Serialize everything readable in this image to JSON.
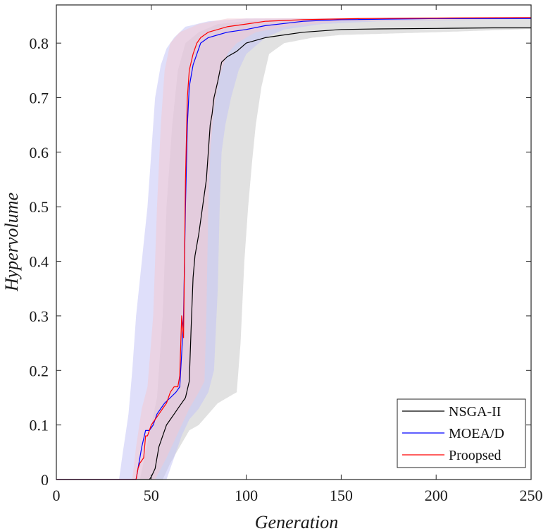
{
  "chart_data": {
    "type": "line",
    "title": "",
    "xlabel": "Generation",
    "ylabel": "Hypervolume",
    "xlim": [
      0,
      250
    ],
    "ylim": [
      0,
      0.87
    ],
    "xticks": [
      0,
      50,
      100,
      150,
      200,
      250
    ],
    "yticks": [
      0,
      0.1,
      0.2,
      0.3,
      0.4,
      0.5,
      0.6,
      0.7,
      0.8
    ],
    "grid": false,
    "legend_position": "bottom-right",
    "series": [
      {
        "name": "NSGA-II",
        "color": "#000000",
        "band_color": "#c8c8c8",
        "mean": [
          [
            0,
            0
          ],
          [
            49,
            0
          ],
          [
            50,
            0.005
          ],
          [
            52,
            0.02
          ],
          [
            54,
            0.06
          ],
          [
            56,
            0.08
          ],
          [
            58,
            0.1
          ],
          [
            60,
            0.11
          ],
          [
            62,
            0.12
          ],
          [
            64,
            0.13
          ],
          [
            66,
            0.14
          ],
          [
            68,
            0.15
          ],
          [
            70,
            0.18
          ],
          [
            71,
            0.28
          ],
          [
            72,
            0.37
          ],
          [
            73,
            0.41
          ],
          [
            75,
            0.45
          ],
          [
            77,
            0.5
          ],
          [
            79,
            0.55
          ],
          [
            80,
            0.6
          ],
          [
            81,
            0.65
          ],
          [
            82,
            0.67
          ],
          [
            83,
            0.7
          ],
          [
            85,
            0.73
          ],
          [
            87,
            0.765
          ],
          [
            90,
            0.775
          ],
          [
            95,
            0.785
          ],
          [
            100,
            0.8
          ],
          [
            110,
            0.81
          ],
          [
            120,
            0.815
          ],
          [
            130,
            0.82
          ],
          [
            150,
            0.825
          ],
          [
            170,
            0.826
          ],
          [
            200,
            0.827
          ],
          [
            230,
            0.828
          ],
          [
            250,
            0.828
          ]
        ],
        "lower": [
          [
            0,
            0
          ],
          [
            56,
            0
          ],
          [
            60,
            0.03
          ],
          [
            65,
            0.06
          ],
          [
            70,
            0.09
          ],
          [
            75,
            0.1
          ],
          [
            80,
            0.12
          ],
          [
            85,
            0.14
          ],
          [
            90,
            0.15
          ],
          [
            95,
            0.16
          ],
          [
            97,
            0.25
          ],
          [
            99,
            0.4
          ],
          [
            101,
            0.5
          ],
          [
            103,
            0.58
          ],
          [
            105,
            0.65
          ],
          [
            108,
            0.72
          ],
          [
            112,
            0.78
          ],
          [
            120,
            0.8
          ],
          [
            135,
            0.81
          ],
          [
            150,
            0.815
          ],
          [
            200,
            0.82
          ],
          [
            250,
            0.826
          ]
        ],
        "upper": [
          [
            0,
            0
          ],
          [
            44,
            0
          ],
          [
            47,
            0.05
          ],
          [
            50,
            0.1
          ],
          [
            53,
            0.15
          ],
          [
            56,
            0.3
          ],
          [
            58,
            0.5
          ],
          [
            61,
            0.65
          ],
          [
            64,
            0.75
          ],
          [
            68,
            0.8
          ],
          [
            75,
            0.82
          ],
          [
            85,
            0.835
          ],
          [
            100,
            0.84
          ],
          [
            150,
            0.845
          ],
          [
            250,
            0.846
          ]
        ]
      },
      {
        "name": "MOEA/D",
        "color": "#0000ff",
        "band_color": "#c4c4f5",
        "mean": [
          [
            0,
            0
          ],
          [
            42,
            0
          ],
          [
            43,
            0.02
          ],
          [
            44,
            0.04
          ],
          [
            45,
            0.06
          ],
          [
            47,
            0.09
          ],
          [
            49,
            0.09
          ],
          [
            51,
            0.1
          ],
          [
            53,
            0.12
          ],
          [
            55,
            0.13
          ],
          [
            57,
            0.14
          ],
          [
            60,
            0.15
          ],
          [
            63,
            0.16
          ],
          [
            65,
            0.17
          ],
          [
            66,
            0.23
          ],
          [
            67,
            0.3
          ],
          [
            68,
            0.5
          ],
          [
            69,
            0.65
          ],
          [
            70,
            0.72
          ],
          [
            72,
            0.76
          ],
          [
            74,
            0.78
          ],
          [
            76,
            0.8
          ],
          [
            78,
            0.805
          ],
          [
            80,
            0.81
          ],
          [
            85,
            0.815
          ],
          [
            90,
            0.82
          ],
          [
            100,
            0.825
          ],
          [
            110,
            0.832
          ],
          [
            120,
            0.836
          ],
          [
            130,
            0.84
          ],
          [
            150,
            0.843
          ],
          [
            200,
            0.845
          ],
          [
            250,
            0.845
          ]
        ],
        "lower": [
          [
            0,
            0
          ],
          [
            58,
            0
          ],
          [
            60,
            0.02
          ],
          [
            63,
            0.05
          ],
          [
            66,
            0.08
          ],
          [
            70,
            0.11
          ],
          [
            75,
            0.13
          ],
          [
            80,
            0.16
          ],
          [
            83,
            0.2
          ],
          [
            85,
            0.35
          ],
          [
            86,
            0.5
          ],
          [
            87,
            0.6
          ],
          [
            89,
            0.65
          ],
          [
            92,
            0.7
          ],
          [
            96,
            0.75
          ],
          [
            100,
            0.78
          ],
          [
            110,
            0.81
          ],
          [
            120,
            0.825
          ],
          [
            140,
            0.835
          ],
          [
            170,
            0.84
          ],
          [
            250,
            0.844
          ]
        ],
        "upper": [
          [
            0,
            0
          ],
          [
            33,
            0
          ],
          [
            35,
            0.05
          ],
          [
            38,
            0.12
          ],
          [
            40,
            0.2
          ],
          [
            42,
            0.3
          ],
          [
            45,
            0.4
          ],
          [
            48,
            0.5
          ],
          [
            50,
            0.6
          ],
          [
            52,
            0.7
          ],
          [
            55,
            0.76
          ],
          [
            58,
            0.79
          ],
          [
            62,
            0.81
          ],
          [
            68,
            0.83
          ],
          [
            80,
            0.84
          ],
          [
            100,
            0.845
          ],
          [
            250,
            0.847
          ]
        ]
      },
      {
        "name": "Proopsed",
        "color": "#ff0000",
        "band_color": "#f2c8d2",
        "mean": [
          [
            0,
            0
          ],
          [
            42,
            0
          ],
          [
            43,
            0.02
          ],
          [
            44,
            0.03
          ],
          [
            46,
            0.04
          ],
          [
            47,
            0.08
          ],
          [
            48,
            0.08
          ],
          [
            50,
            0.1
          ],
          [
            52,
            0.11
          ],
          [
            54,
            0.12
          ],
          [
            56,
            0.13
          ],
          [
            58,
            0.14
          ],
          [
            60,
            0.16
          ],
          [
            62,
            0.17
          ],
          [
            64,
            0.17
          ],
          [
            65,
            0.19
          ],
          [
            66,
            0.3
          ],
          [
            67,
            0.26
          ],
          [
            68,
            0.55
          ],
          [
            69,
            0.7
          ],
          [
            70,
            0.75
          ],
          [
            72,
            0.78
          ],
          [
            74,
            0.8
          ],
          [
            76,
            0.81
          ],
          [
            78,
            0.815
          ],
          [
            80,
            0.82
          ],
          [
            85,
            0.825
          ],
          [
            90,
            0.83
          ],
          [
            100,
            0.835
          ],
          [
            110,
            0.84
          ],
          [
            130,
            0.843
          ],
          [
            160,
            0.845
          ],
          [
            200,
            0.846
          ],
          [
            250,
            0.847
          ]
        ],
        "lower": [
          [
            0,
            0
          ],
          [
            52,
            0
          ],
          [
            55,
            0.02
          ],
          [
            58,
            0.04
          ],
          [
            62,
            0.07
          ],
          [
            66,
            0.1
          ],
          [
            70,
            0.13
          ],
          [
            75,
            0.16
          ],
          [
            78,
            0.18
          ],
          [
            79,
            0.3
          ],
          [
            80,
            0.5
          ],
          [
            81,
            0.6
          ],
          [
            83,
            0.68
          ],
          [
            86,
            0.74
          ],
          [
            90,
            0.78
          ],
          [
            95,
            0.8
          ],
          [
            105,
            0.82
          ],
          [
            120,
            0.83
          ],
          [
            150,
            0.84
          ],
          [
            250,
            0.845
          ]
        ],
        "upper": [
          [
            0,
            0
          ],
          [
            40,
            0
          ],
          [
            42,
            0.06
          ],
          [
            45,
            0.13
          ],
          [
            48,
            0.17
          ],
          [
            51,
            0.3
          ],
          [
            53,
            0.5
          ],
          [
            55,
            0.65
          ],
          [
            57,
            0.75
          ],
          [
            60,
            0.8
          ],
          [
            65,
            0.82
          ],
          [
            75,
            0.835
          ],
          [
            90,
            0.845
          ],
          [
            250,
            0.848
          ]
        ]
      }
    ]
  }
}
